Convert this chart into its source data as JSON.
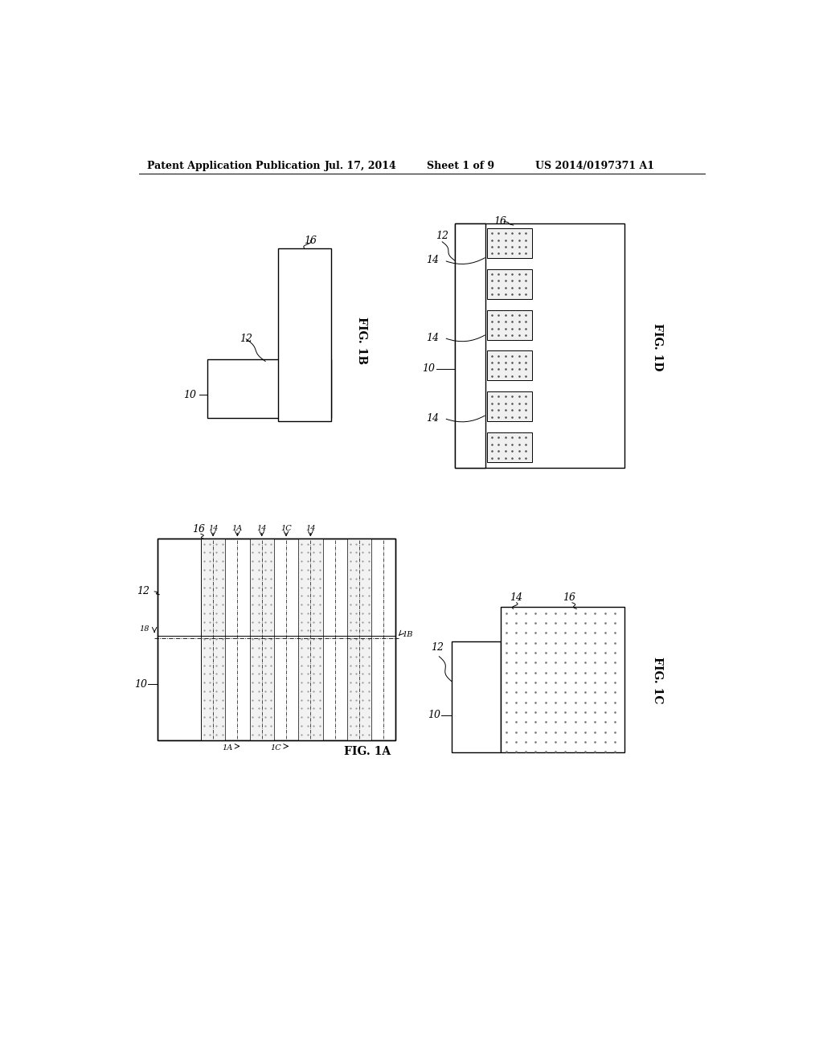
{
  "bg_color": "#ffffff",
  "header_text": "Patent Application Publication",
  "header_date": "Jul. 17, 2014",
  "header_sheet": "Sheet 1 of 9",
  "header_patent": "US 2014/0197371 A1",
  "fig_label_fontsize": 10,
  "label_fontsize": 9,
  "header_fontsize": 9
}
